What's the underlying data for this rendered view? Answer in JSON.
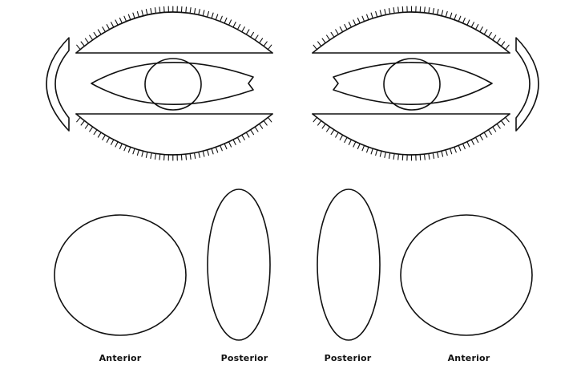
{
  "labels": {
    "lens_1": "Anterior",
    "lens_2": "Posterior",
    "lens_3": "Posterior",
    "lens_4": "Anterior"
  },
  "colors": {
    "line": "#111111",
    "background": "#ffffff"
  }
}
